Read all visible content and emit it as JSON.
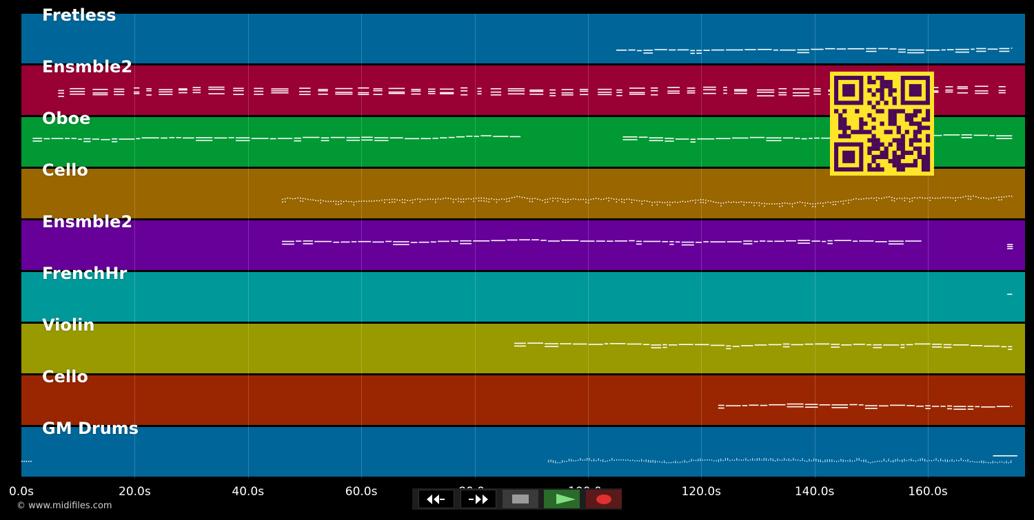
{
  "tracks": [
    {
      "name": "Fretless",
      "color": "#006699",
      "notes": {
        "from": 105,
        "to": 175,
        "center": 0.72,
        "spread": 4,
        "style": "dash"
      }
    },
    {
      "name": "Ensmble2",
      "color": "#990033",
      "notes": {
        "from": 6.5,
        "to": 175,
        "center": 0.55,
        "spread": 9,
        "style": "chord"
      }
    },
    {
      "name": "Oboe",
      "color": "#009933",
      "notes": {
        "from": 2,
        "to": 175,
        "center": 0.42,
        "spread": 6,
        "style": "dash",
        "gap": [
          87,
          105
        ]
      }
    },
    {
      "name": "Cello",
      "color": "#996600",
      "notes": {
        "from": 46,
        "to": 175,
        "center": 0.6,
        "spread": 7,
        "style": "dot"
      }
    },
    {
      "name": "Ensmble2",
      "color": "#660099",
      "notes": {
        "from": 46,
        "to": 159,
        "center": 0.42,
        "spread": 6,
        "style": "dash",
        "tail": [
          174,
          175
        ]
      }
    },
    {
      "name": "FrenchHr",
      "color": "#009999",
      "notes": {
        "from": 174,
        "to": 175,
        "center": 0.45,
        "spread": 4,
        "style": "dash"
      }
    },
    {
      "name": "Violin",
      "color": "#999900",
      "notes": {
        "from": 87,
        "to": 175,
        "center": 0.38,
        "spread": 6,
        "style": "dash"
      }
    },
    {
      "name": "Cello",
      "color": "#992600",
      "notes": {
        "from": 123,
        "to": 175,
        "center": 0.58,
        "spread": 7,
        "style": "dash"
      }
    },
    {
      "name": "GM Drums",
      "color": "#006699",
      "notes": {
        "from": 93,
        "to": 175,
        "center": 0.68,
        "spread": 2,
        "style": "drum",
        "lead": [
          0,
          2
        ]
      }
    }
  ],
  "timeline": {
    "max_seconds": 177,
    "ticks": [
      "0.0s",
      "20.0s",
      "40.0s",
      "60.0s",
      "80.0s",
      "100.0s",
      "120.0s",
      "140.0s",
      "160.0s"
    ]
  },
  "transport": {
    "buttons": [
      "rewind-icon",
      "fast-forward-icon",
      "stop-icon",
      "play-icon",
      "record-icon"
    ],
    "colors": {
      "rewind": "#000000",
      "ffwd": "#000000",
      "stop": "#3a3a3a",
      "play": "#2a6a2a",
      "record": "#5a1a1a"
    }
  },
  "copyright": "© www.midifiles.com",
  "qr_colors": {
    "bg": "#ffe42a",
    "fg": "#4a0a55"
  }
}
